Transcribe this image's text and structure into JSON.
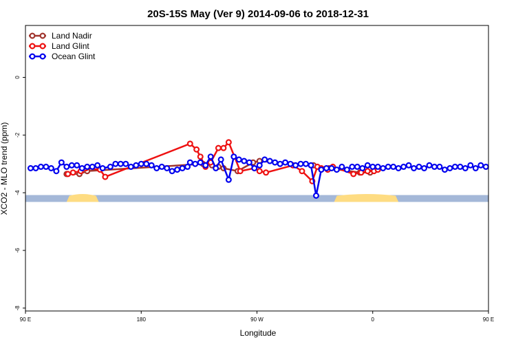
{
  "chart_data": {
    "type": "line",
    "title": "20S-15S May (Ver 9)   2014-09-06 to 2018-12-31",
    "xlabel": "Longitude",
    "ylabel": "XCO2 - MLO trend (ppm)",
    "xlim": [
      90,
      450
    ],
    "ylim": [
      -8.1,
      1.8
    ],
    "x_ticks": [
      {
        "value": 90,
        "label": "90 E"
      },
      {
        "value": 180,
        "label": "180"
      },
      {
        "value": 270,
        "label": "90 W"
      },
      {
        "value": 360,
        "label": "0"
      },
      {
        "value": 450,
        "label": "90 E"
      },
      {
        "value": 540,
        "label": "180"
      }
    ],
    "y_ticks": [
      {
        "value": 0,
        "label": "0"
      },
      {
        "value": -2,
        "label": "-2"
      },
      {
        "value": -4,
        "label": "-4"
      },
      {
        "value": -6,
        "label": "-6"
      },
      {
        "value": -8,
        "label": "-8"
      }
    ],
    "legend_position": "top-left",
    "land_strip": {
      "y": -4.2,
      "ocean_color": "#a4b8d8",
      "land_color": "#fedc82",
      "land_segments": [
        [
          122,
          147
        ],
        [
          330,
          380
        ],
        [
          455,
          485
        ],
        [
          488,
          492
        ],
        [
          555,
          592
        ]
      ]
    },
    "series": [
      {
        "name": "Land Nadir",
        "color": "#a0342d",
        "x": [
          122,
          132,
          138,
          228,
          235,
          240,
          244,
          255,
          267,
          272,
          314,
          326,
          350,
          358,
          362
        ],
        "y": [
          -3.35,
          -3.35,
          -3.25,
          -3.0,
          -3.05,
          -3.1,
          -3.15,
          -3.25,
          -2.95,
          -2.9,
          -3.05,
          -3.15,
          -3.3,
          -3.3,
          -3.2
        ]
      },
      {
        "name": "Land Glint",
        "color": "#ee1111",
        "x": [
          123,
          127,
          133,
          137,
          148,
          152,
          218,
          223,
          226,
          230,
          234,
          240,
          244,
          248,
          257,
          268,
          272,
          277,
          298,
          305,
          313,
          317,
          320,
          325,
          329,
          345,
          351,
          356,
          361,
          364
        ],
        "y": [
          -3.35,
          -3.3,
          -3.25,
          -3.15,
          -3.2,
          -3.45,
          -2.3,
          -2.5,
          -2.75,
          -3.1,
          -2.95,
          -2.45,
          -2.45,
          -2.25,
          -3.25,
          -3.15,
          -3.25,
          -3.3,
          -3.05,
          -3.25,
          -3.6,
          -3.1,
          -3.15,
          -3.2,
          -3.1,
          -3.35,
          -3.3,
          -3.25,
          -3.25,
          -3.2
        ]
      },
      {
        "name": "Ocean Glint",
        "color": "#0000ee",
        "x": [
          94,
          98,
          102,
          106,
          110,
          114,
          118,
          122,
          126,
          130,
          134,
          138,
          142,
          146,
          150,
          156,
          160,
          164,
          168,
          172,
          176,
          180,
          184,
          188,
          192,
          196,
          200,
          204,
          208,
          212,
          216,
          218,
          222,
          226,
          230,
          234,
          238,
          242,
          248,
          252,
          256,
          260,
          264,
          268,
          272,
          276,
          280,
          284,
          288,
          292,
          296,
          300,
          304,
          308,
          312,
          316,
          320,
          324,
          328,
          332,
          336,
          340,
          344,
          348,
          352,
          356,
          360,
          364,
          368,
          372,
          376,
          380,
          384,
          388,
          392,
          396,
          400,
          404,
          408,
          412,
          416,
          420,
          424,
          428,
          432,
          436,
          440,
          444,
          448
        ],
        "y": [
          -3.15,
          -3.15,
          -3.1,
          -3.1,
          -3.15,
          -3.25,
          -2.95,
          -3.1,
          -3.05,
          -3.05,
          -3.15,
          -3.1,
          -3.1,
          -3.05,
          -3.15,
          -3.1,
          -3.0,
          -3.0,
          -3.0,
          -3.1,
          -3.05,
          -3.0,
          -3.0,
          -3.05,
          -3.15,
          -3.1,
          -3.15,
          -3.25,
          -3.2,
          -3.15,
          -3.1,
          -2.95,
          -3.0,
          -2.95,
          -3.05,
          -2.75,
          -3.15,
          -2.85,
          -3.55,
          -2.75,
          -2.85,
          -2.9,
          -2.95,
          -3.15,
          -3.05,
          -2.85,
          -2.9,
          -2.95,
          -3.0,
          -2.95,
          -3.0,
          -3.05,
          -3.0,
          -3.0,
          -3.05,
          -4.1,
          -3.2,
          -3.15,
          -3.15,
          -3.2,
          -3.1,
          -3.2,
          -3.1,
          -3.1,
          -3.15,
          -3.05,
          -3.1,
          -3.1,
          -3.15,
          -3.1,
          -3.1,
          -3.15,
          -3.1,
          -3.05,
          -3.15,
          -3.1,
          -3.15,
          -3.05,
          -3.1,
          -3.1,
          -3.2,
          -3.15,
          -3.1,
          -3.1,
          -3.15,
          -3.05,
          -3.15,
          -3.05,
          -3.1
        ]
      }
    ]
  }
}
